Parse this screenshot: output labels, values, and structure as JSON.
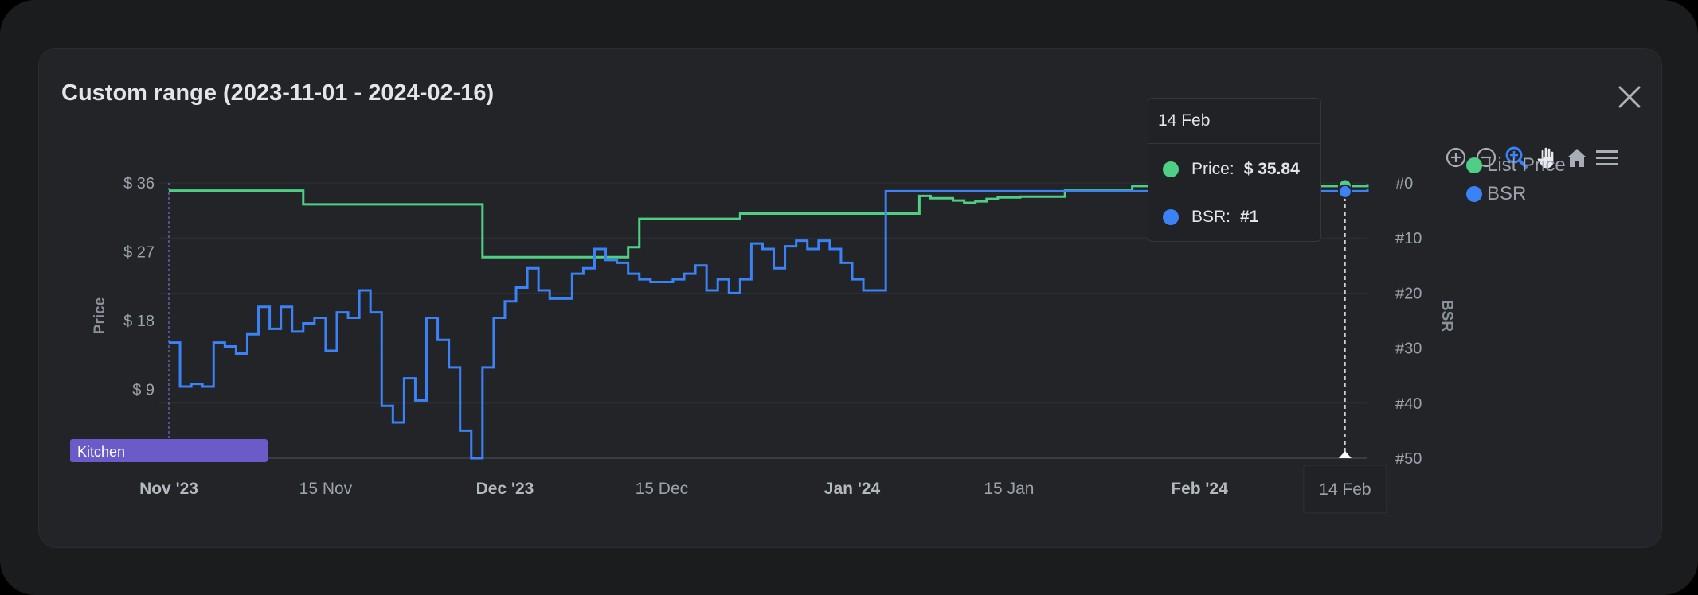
{
  "modal": {
    "title": "Custom range (2023-11-01 - 2024-02-16)"
  },
  "toolbar": {
    "tools": [
      {
        "name": "zoom-in-icon"
      },
      {
        "name": "zoom-out-icon"
      },
      {
        "name": "selection-zoom-icon",
        "active": true
      },
      {
        "name": "pan-hand-icon"
      },
      {
        "name": "reset-home-icon"
      },
      {
        "name": "menu-icon"
      }
    ]
  },
  "tooltip": {
    "date": "14 Feb",
    "rows": [
      {
        "label": "Price:",
        "value": "$ 35.84",
        "color": "#4fce85"
      },
      {
        "label": "BSR:",
        "value": "#1",
        "color": "#3b82f6"
      }
    ]
  },
  "legend": [
    {
      "label": "List Price",
      "color": "#4fce85"
    },
    {
      "label": "BSR",
      "color": "#3b82f6"
    }
  ],
  "chart_data": {
    "type": "line",
    "step": true,
    "grid": true,
    "legend_position": "right",
    "x_domain": [
      "2023-11-01",
      "2024-02-16"
    ],
    "x_ticks": [
      {
        "date": "2023-11-01",
        "label": "Nov '23",
        "major": true
      },
      {
        "date": "2023-11-15",
        "label": "15 Nov",
        "major": false
      },
      {
        "date": "2023-12-01",
        "label": "Dec '23",
        "major": true
      },
      {
        "date": "2023-12-15",
        "label": "15 Dec",
        "major": false
      },
      {
        "date": "2024-01-01",
        "label": "Jan '24",
        "major": true
      },
      {
        "date": "2024-01-15",
        "label": "15 Jan",
        "major": false
      },
      {
        "date": "2024-02-01",
        "label": "Feb '24",
        "major": true
      }
    ],
    "crosshair": {
      "date": "2024-02-14",
      "label": "14 Feb"
    },
    "y_left": {
      "title": "Price",
      "min": 0,
      "max": 36,
      "ticks": [
        {
          "v": 36,
          "label": "$ 36"
        },
        {
          "v": 27,
          "label": "$ 27"
        },
        {
          "v": 18,
          "label": "$ 18"
        },
        {
          "v": 9,
          "label": "$ 9"
        }
      ]
    },
    "y_right": {
      "title": "BSR",
      "min": 0,
      "max": 50,
      "reversed": true,
      "ticks": [
        {
          "v": 0,
          "label": "#0"
        },
        {
          "v": 10,
          "label": "#10"
        },
        {
          "v": 20,
          "label": "#20"
        },
        {
          "v": 30,
          "label": "#30"
        },
        {
          "v": 40,
          "label": "#40"
        },
        {
          "v": 50,
          "label": "#50"
        }
      ]
    },
    "annotation": {
      "label": "Kitchen",
      "color": "#6b5bc9",
      "start": "2023-11-01",
      "end": "2023-11-05"
    },
    "series": [
      {
        "name": "List Price",
        "axis": "left",
        "color": "#4fce85",
        "points": [
          [
            "2023-11-01",
            35.0
          ],
          [
            "2023-11-13",
            33.2
          ],
          [
            "2023-11-29",
            26.3
          ],
          [
            "2023-12-12",
            27.6
          ],
          [
            "2023-12-13",
            31.3
          ],
          [
            "2023-12-22",
            32.0
          ],
          [
            "2024-01-07",
            34.3
          ],
          [
            "2024-01-08",
            34.0
          ],
          [
            "2024-01-10",
            33.7
          ],
          [
            "2024-01-11",
            33.4
          ],
          [
            "2024-01-12",
            33.6
          ],
          [
            "2024-01-13",
            33.9
          ],
          [
            "2024-01-14",
            34.1
          ],
          [
            "2024-01-16",
            34.2
          ],
          [
            "2024-01-20",
            35.0
          ],
          [
            "2024-01-26",
            35.6
          ],
          [
            "2024-02-16",
            35.84
          ]
        ]
      },
      {
        "name": "BSR",
        "axis": "right",
        "color": "#3b82f6",
        "points": [
          [
            "2023-11-01",
            29
          ],
          [
            "2023-11-02",
            37
          ],
          [
            "2023-11-03",
            36.5
          ],
          [
            "2023-11-04",
            37
          ],
          [
            "2023-11-05",
            29
          ],
          [
            "2023-11-06",
            29.7
          ],
          [
            "2023-11-07",
            31
          ],
          [
            "2023-11-08",
            27.5
          ],
          [
            "2023-11-09",
            22.5
          ],
          [
            "2023-11-10",
            26.5
          ],
          [
            "2023-11-11",
            22.5
          ],
          [
            "2023-11-12",
            27
          ],
          [
            "2023-11-13",
            25.5
          ],
          [
            "2023-11-14",
            24.5
          ],
          [
            "2023-11-15",
            30.5
          ],
          [
            "2023-11-16",
            23.5
          ],
          [
            "2023-11-17",
            24.5
          ],
          [
            "2023-11-18",
            19.5
          ],
          [
            "2023-11-19",
            23.5
          ],
          [
            "2023-11-20",
            40.5
          ],
          [
            "2023-11-21",
            43.5
          ],
          [
            "2023-11-22",
            35.5
          ],
          [
            "2023-11-23",
            39.5
          ],
          [
            "2023-11-24",
            24.5
          ],
          [
            "2023-11-25",
            28.5
          ],
          [
            "2023-11-26",
            33.5
          ],
          [
            "2023-11-27",
            45
          ],
          [
            "2023-11-28",
            50
          ],
          [
            "2023-11-29",
            33.5
          ],
          [
            "2023-11-30",
            24.5
          ],
          [
            "2023-12-01",
            21.5
          ],
          [
            "2023-12-02",
            19
          ],
          [
            "2023-12-03",
            15.5
          ],
          [
            "2023-12-04",
            19.5
          ],
          [
            "2023-12-05",
            21
          ],
          [
            "2023-12-06",
            21
          ],
          [
            "2023-12-07",
            16.5
          ],
          [
            "2023-12-08",
            15.5
          ],
          [
            "2023-12-09",
            12
          ],
          [
            "2023-12-10",
            14
          ],
          [
            "2023-12-11",
            14.5
          ],
          [
            "2023-12-12",
            16.5
          ],
          [
            "2023-12-13",
            17.5
          ],
          [
            "2023-12-14",
            18
          ],
          [
            "2023-12-15",
            18
          ],
          [
            "2023-12-16",
            17.5
          ],
          [
            "2023-12-17",
            16.5
          ],
          [
            "2023-12-18",
            15
          ],
          [
            "2023-12-19",
            19.5
          ],
          [
            "2023-12-20",
            17.5
          ],
          [
            "2023-12-21",
            20
          ],
          [
            "2023-12-22",
            17.5
          ],
          [
            "2023-12-23",
            11
          ],
          [
            "2023-12-24",
            12
          ],
          [
            "2023-12-25",
            15.5
          ],
          [
            "2023-12-26",
            11.5
          ],
          [
            "2023-12-27",
            10.5
          ],
          [
            "2023-12-28",
            12
          ],
          [
            "2023-12-29",
            10.5
          ],
          [
            "2023-12-30",
            12
          ],
          [
            "2023-12-31",
            14.5
          ],
          [
            "2024-01-01",
            17.5
          ],
          [
            "2024-01-02",
            19.5
          ],
          [
            "2024-01-03",
            19.5
          ],
          [
            "2024-01-04",
            1.5
          ],
          [
            "2024-01-30",
            2
          ],
          [
            "2024-01-31",
            1.5
          ],
          [
            "2024-02-16",
            1
          ]
        ]
      }
    ]
  }
}
